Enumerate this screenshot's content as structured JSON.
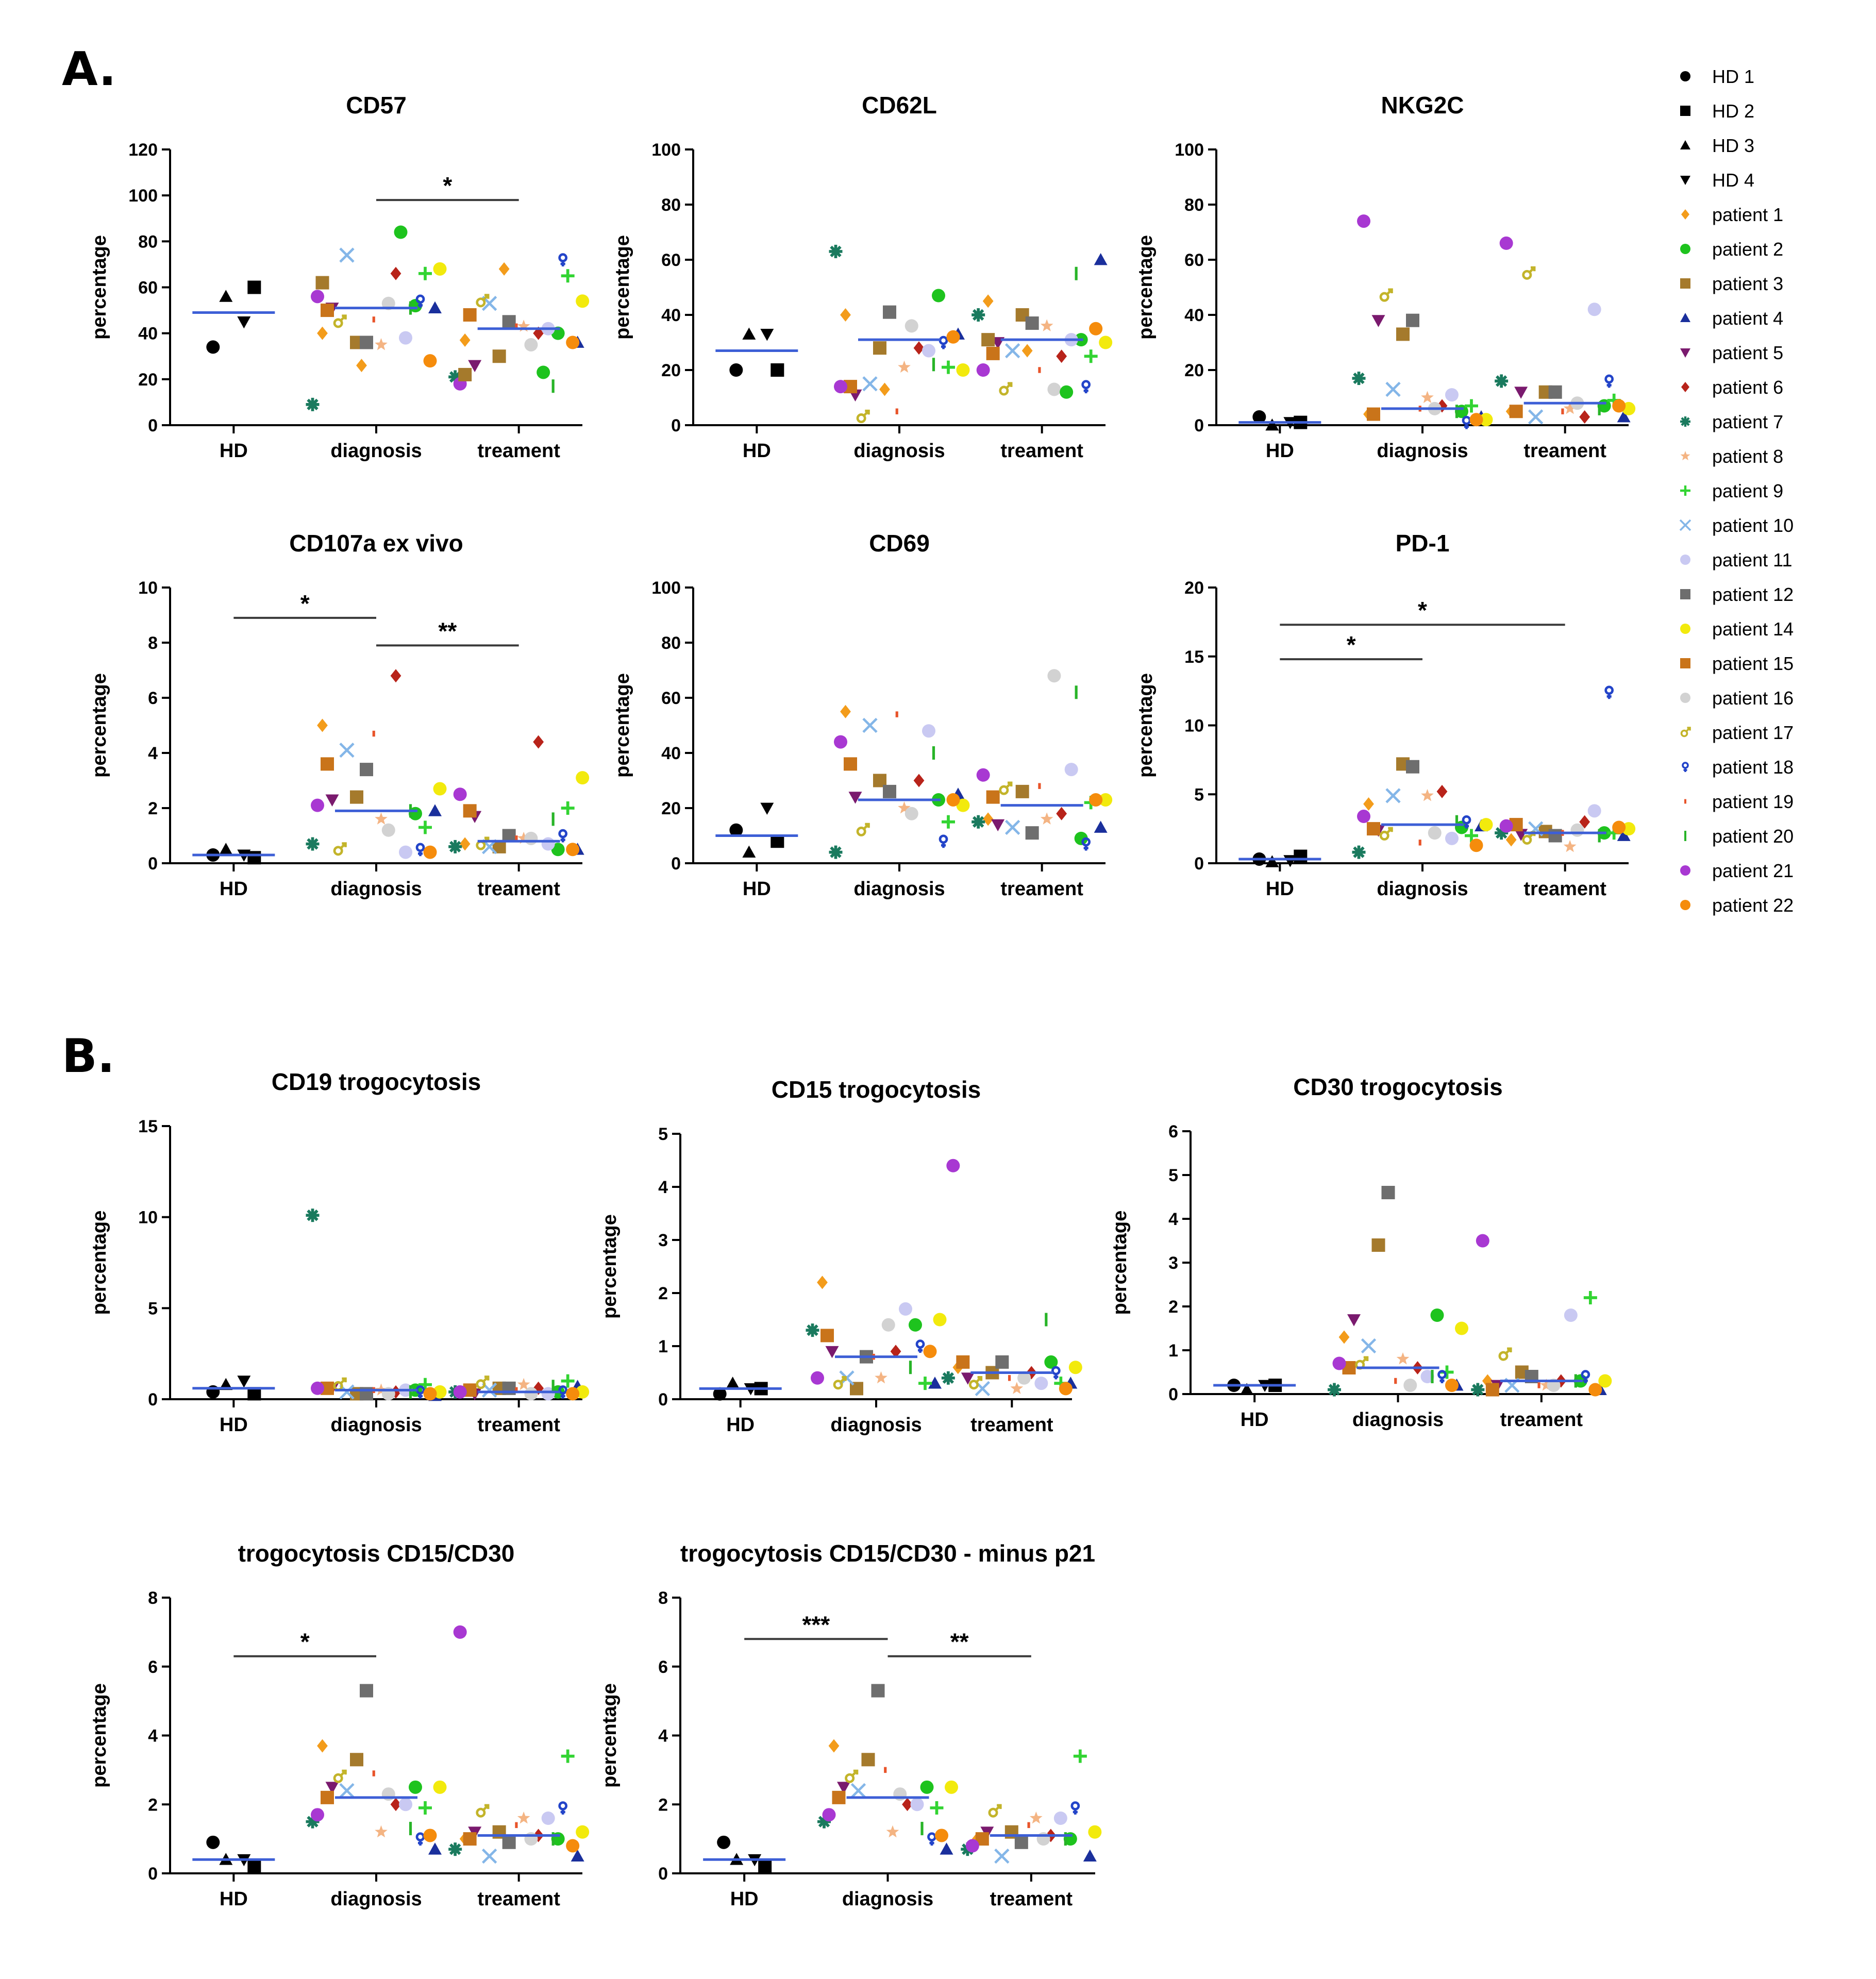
{
  "panels": [
    {
      "label": "A."
    },
    {
      "label": "B."
    }
  ],
  "legend": {
    "items": [
      {
        "name": "HD 1",
        "color": "#000000",
        "shape": "circle"
      },
      {
        "name": "HD 2",
        "color": "#000000",
        "shape": "square"
      },
      {
        "name": "HD 3",
        "color": "#000000",
        "shape": "triangle"
      },
      {
        "name": "HD 4",
        "color": "#000000",
        "shape": "triangle-down"
      },
      {
        "name": "patient 1",
        "color": "#f39c1b",
        "shape": "diamond"
      },
      {
        "name": "patient 2",
        "color": "#1ec31e",
        "shape": "circle"
      },
      {
        "name": "patient 3",
        "color": "#a57a2c",
        "shape": "square"
      },
      {
        "name": "patient 4",
        "color": "#1a2f9c",
        "shape": "triangle"
      },
      {
        "name": "patient 5",
        "color": "#7a1a6e",
        "shape": "triangle-down"
      },
      {
        "name": "patient 6",
        "color": "#b8231a",
        "shape": "diamond"
      },
      {
        "name": "patient 7",
        "color": "#1a7a5e",
        "shape": "asterisk"
      },
      {
        "name": "patient 8",
        "color": "#f4b483",
        "shape": "star"
      },
      {
        "name": "patient 9",
        "color": "#32d432",
        "shape": "plus"
      },
      {
        "name": "patient 10",
        "color": "#84b6e8",
        "shape": "x"
      },
      {
        "name": "patient 11",
        "color": "#c9c9f2",
        "shape": "circle"
      },
      {
        "name": "patient 12",
        "color": "#6e6e6e",
        "shape": "square"
      },
      {
        "name": "patient 14",
        "color": "#f2ea0d",
        "shape": "circle"
      },
      {
        "name": "patient 15",
        "color": "#c9741a",
        "shape": "square"
      },
      {
        "name": "patient 16",
        "color": "#d2d2d2",
        "shape": "circle"
      },
      {
        "name": "patient 17",
        "color": "#c3b42a",
        "shape": "male"
      },
      {
        "name": "patient 18",
        "color": "#2344c9",
        "shape": "female"
      },
      {
        "name": "patient 19",
        "color": "#e8542a",
        "shape": "dash"
      },
      {
        "name": "patient 20",
        "color": "#28b428",
        "shape": "vbar"
      },
      {
        "name": "patient 21",
        "color": "#a838d2",
        "shape": "circle"
      },
      {
        "name": "patient 22",
        "color": "#f58c0c",
        "shape": "circle"
      }
    ]
  },
  "chart_data": [
    {
      "type": "scatter",
      "title": "CD57",
      "ylabel": "percentage",
      "ylim": [
        0,
        120
      ],
      "yticks": [
        "0",
        "20",
        "40",
        "60",
        "80",
        "100",
        "120"
      ],
      "tick_values": [
        0,
        20,
        40,
        60,
        80,
        100,
        120
      ],
      "categories": [
        "HD",
        "diagnosis",
        "treament"
      ],
      "means": [
        49,
        51,
        42
      ],
      "significance": [
        {
          "from": 1,
          "to": 2,
          "label": "*",
          "y": 98
        }
      ],
      "points": [
        [
          34,
          60,
          56,
          45
        ],
        [
          40,
          52,
          36,
          51,
          51,
          66,
          9,
          35,
          66,
          74,
          38,
          36,
          68,
          50,
          53,
          45,
          54,
          46,
          51,
          56,
          28,
          26,
          84,
          62
        ],
        [
          37,
          40,
          30,
          36,
          26,
          40,
          21,
          43,
          65,
          53,
          42,
          45,
          54,
          48,
          35,
          54,
          72,
          43,
          17,
          18,
          36,
          68,
          23,
          22
        ]
      ]
    },
    {
      "type": "scatter",
      "title": "CD62L",
      "ylabel": "percentage",
      "ylim": [
        0,
        100
      ],
      "yticks": [
        "0",
        "20",
        "40",
        "60",
        "80",
        "100"
      ],
      "tick_values": [
        0,
        20,
        40,
        60,
        80,
        100
      ],
      "categories": [
        "HD",
        "diagnosis",
        "treament"
      ],
      "means": [
        27,
        31,
        31
      ],
      "significance": [],
      "points": [
        [
          20,
          20,
          33,
          33
        ],
        [
          40,
          47,
          28,
          33,
          11,
          28,
          63,
          21,
          21,
          15,
          27,
          41,
          20,
          14,
          36,
          3,
          30,
          5,
          22,
          14,
          32,
          13
        ],
        [
          45,
          31,
          40,
          60,
          30,
          25,
          40,
          36,
          25,
          27,
          31,
          37,
          30,
          26,
          13,
          13,
          14,
          20,
          55,
          20,
          35,
          27,
          12,
          31
        ]
      ]
    },
    {
      "type": "scatter",
      "title": "NKG2C",
      "ylabel": "percentage",
      "ylim": [
        0,
        100
      ],
      "yticks": [
        "0",
        "20",
        "40",
        "60",
        "80",
        "100"
      ],
      "tick_values": [
        0,
        20,
        40,
        60,
        80,
        100
      ],
      "categories": [
        "HD",
        "diagnosis",
        "treament"
      ],
      "means": [
        1,
        6,
        8
      ],
      "significance": [],
      "points": [
        [
          3,
          1,
          0,
          1
        ],
        [
          4,
          5,
          33,
          3,
          38,
          7,
          17,
          10,
          7,
          13,
          11,
          38,
          2,
          4,
          6,
          47,
          1,
          6,
          5,
          74,
          2
        ],
        [
          5,
          7,
          12,
          3,
          12,
          3,
          16,
          6,
          9,
          3,
          42,
          12,
          6,
          5,
          8,
          55,
          16,
          5,
          6,
          66,
          7
        ]
      ]
    },
    {
      "type": "scatter",
      "title": "CD107a ex vivo",
      "ylabel": "percentage",
      "ylim": [
        0,
        10
      ],
      "yticks": [
        "0",
        "2",
        "4",
        "6",
        "8",
        "10"
      ],
      "tick_values": [
        0,
        2,
        4,
        6,
        8,
        10
      ],
      "categories": [
        "HD",
        "diagnosis",
        "treament"
      ],
      "means": [
        0.3,
        1.9,
        0.8
      ],
      "significance": [
        {
          "from": 0,
          "to": 1,
          "label": "*",
          "y": 8.9
        },
        {
          "from": 1,
          "to": 2,
          "label": "**",
          "y": 7.9
        }
      ],
      "points": [
        [
          0.3,
          0.2,
          0.5,
          0.3
        ],
        [
          5.0,
          1.8,
          2.4,
          1.9,
          2.3,
          6.8,
          0.7,
          1.6,
          1.3,
          4.1,
          0.4,
          3.4,
          2.7,
          3.6,
          1.2,
          0.5,
          0.5,
          4.7,
          1.9,
          2.1,
          0.4
        ],
        [
          0.7,
          0.5,
          0.6,
          0.5,
          1.7,
          4.4,
          0.6,
          0.9,
          2.0,
          0.6,
          0.7,
          1.0,
          3.1,
          1.9,
          0.9,
          0.7,
          1.0,
          0.9,
          1.6,
          2.5,
          0.5
        ]
      ]
    },
    {
      "type": "scatter",
      "title": "CD69",
      "ylabel": "percentage",
      "ylim": [
        0,
        100
      ],
      "yticks": [
        "0",
        "20",
        "40",
        "60",
        "80",
        "100"
      ],
      "tick_values": [
        0,
        20,
        40,
        60,
        80,
        100
      ],
      "categories": [
        "HD",
        "diagnosis",
        "treament"
      ],
      "means": [
        10,
        23,
        21
      ],
      "significance": [],
      "points": [
        [
          12,
          8,
          4,
          20
        ],
        [
          55,
          23,
          30,
          25,
          24,
          30,
          4,
          20,
          15,
          50,
          48,
          26,
          21,
          36,
          18,
          12,
          8,
          54,
          40,
          44,
          23
        ],
        [
          16,
          9,
          26,
          13,
          14,
          18,
          15,
          16,
          22,
          13,
          34,
          11,
          23,
          24,
          68,
          27,
          7,
          28,
          62,
          32,
          23
        ]
      ]
    },
    {
      "type": "scatter",
      "title": "PD-1",
      "ylabel": "percentage",
      "ylim": [
        0,
        20
      ],
      "yticks": [
        "0",
        "5",
        "10",
        "15",
        "20"
      ],
      "tick_values": [
        0,
        5,
        10,
        15,
        20
      ],
      "categories": [
        "HD",
        "diagnosis",
        "treament"
      ],
      "means": [
        0.3,
        2.8,
        2.2
      ],
      "significance": [
        {
          "from": 0,
          "to": 1,
          "label": "*",
          "y": 14.8
        },
        {
          "from": 0,
          "to": 2,
          "label": "*",
          "y": 17.3
        }
      ],
      "points": [
        [
          0.3,
          0.5,
          0.1,
          0.2
        ],
        [
          4.3,
          2.6,
          7.2,
          2.7,
          2.4,
          5.2,
          0.8,
          4.9,
          2.0,
          4.9,
          1.8,
          7.0,
          2.8,
          2.5,
          2.2,
          2.1,
          3.0,
          1.5,
          3.0,
          3.4,
          1.3
        ],
        [
          1.7,
          2.2,
          2.3,
          2.0,
          2.1,
          3.0,
          2.2,
          1.2,
          2.2,
          2.5,
          3.8,
          2.0,
          2.5,
          2.8,
          2.4,
          1.8,
          12.4,
          2.2,
          2.0,
          2.7,
          2.6
        ]
      ]
    },
    {
      "type": "scatter",
      "title": "CD19 trogocytosis",
      "ylabel": "percentage",
      "ylim": [
        0,
        15
      ],
      "yticks": [
        "0",
        "5",
        "10",
        "15"
      ],
      "tick_values": [
        0,
        5,
        10,
        15
      ],
      "categories": [
        "HD",
        "diagnosis",
        "treament"
      ],
      "means": [
        0.6,
        0.5,
        0.4
      ],
      "significance": [],
      "points": [
        [
          0.4,
          0.3,
          0.8,
          1.0
        ],
        [
          0.6,
          0.5,
          0.3,
          0.2,
          0.6,
          0.4,
          10.1,
          0.5,
          0.8,
          0.4,
          0.5,
          0.3,
          0.4,
          0.6,
          0.3,
          0.8,
          0.4,
          0.5,
          0.4,
          0.6,
          0.3
        ],
        [
          0.5,
          0.4,
          0.6,
          0.7,
          0.3,
          0.6,
          0.4,
          0.8,
          1.0,
          0.5,
          0.3,
          0.6,
          0.4,
          0.5,
          0.3,
          0.9,
          0.4,
          0.5,
          0.7,
          0.4,
          0.3
        ]
      ]
    },
    {
      "type": "scatter",
      "title": "CD15 trogocytosis",
      "ylabel": "percentage",
      "ylim": [
        0,
        5
      ],
      "yticks": [
        "0",
        "1",
        "2",
        "3",
        "4",
        "5"
      ],
      "tick_values": [
        0,
        1,
        2,
        3,
        4,
        5
      ],
      "categories": [
        "HD",
        "diagnosis",
        "treament"
      ],
      "means": [
        0.2,
        0.8,
        0.5
      ],
      "significance": [],
      "points": [
        [
          0.1,
          0.2,
          0.3,
          0.2
        ],
        [
          2.2,
          1.4,
          0.2,
          0.3,
          0.9,
          0.9,
          1.3,
          0.4,
          0.3,
          0.4,
          1.7,
          0.8,
          1.5,
          1.2,
          1.4,
          0.3,
          1.0,
          0.8,
          0.6,
          0.4,
          0.9
        ],
        [
          0.6,
          0.7,
          0.5,
          0.3,
          0.4,
          0.5,
          0.4,
          0.2,
          0.3,
          0.2,
          0.3,
          0.7,
          0.6,
          0.7,
          0.4,
          0.3,
          0.5,
          0.4,
          1.5,
          4.4,
          0.2
        ]
      ]
    },
    {
      "type": "scatter",
      "title": "CD30 trogocytosis",
      "ylabel": "percentage",
      "ylim": [
        0,
        6
      ],
      "yticks": [
        "0",
        "1",
        "2",
        "3",
        "4",
        "5",
        "6"
      ],
      "tick_values": [
        0,
        1,
        2,
        3,
        4,
        5,
        6
      ],
      "categories": [
        "HD",
        "diagnosis",
        "treament"
      ],
      "means": [
        0.2,
        0.6,
        0.3
      ],
      "significance": [],
      "points": [
        [
          0.2,
          0.2,
          0.1,
          0.2
        ],
        [
          1.3,
          1.8,
          3.4,
          0.2,
          1.7,
          0.6,
          0.1,
          0.8,
          0.5,
          1.1,
          0.4,
          4.6,
          1.5,
          0.6,
          0.2,
          0.7,
          0.4,
          0.3,
          0.4,
          0.7,
          0.2
        ],
        [
          0.3,
          0.3,
          0.5,
          0.1,
          0.2,
          0.3,
          0.1,
          0.2,
          2.2,
          0.2,
          1.8,
          0.4,
          0.3,
          0.1,
          0.2,
          0.9,
          0.4,
          0.2,
          0.3,
          3.5,
          0.1
        ]
      ]
    },
    {
      "type": "scatter",
      "title": "trogocytosis CD15/CD30",
      "ylabel": "percentage",
      "ylim": [
        0,
        8
      ],
      "yticks": [
        "0",
        "2",
        "4",
        "6",
        "8"
      ],
      "tick_values": [
        0,
        2,
        4,
        6,
        8
      ],
      "categories": [
        "HD",
        "diagnosis",
        "treament"
      ],
      "means": [
        0.4,
        2.2,
        1.1
      ],
      "significance": [
        {
          "from": 0,
          "to": 1,
          "label": "*",
          "y": 6.3
        }
      ],
      "points": [
        [
          0.9,
          0.2,
          0.4,
          0.4
        ],
        [
          3.7,
          2.5,
          3.3,
          0.7,
          2.5,
          2.0,
          1.5,
          1.2,
          1.9,
          2.4,
          2.0,
          5.3,
          2.5,
          2.2,
          2.3,
          2.8,
          1.0,
          2.9,
          1.3,
          1.7,
          1.1
        ],
        [
          1.0,
          1.0,
          1.2,
          0.5,
          1.2,
          1.1,
          0.7,
          1.6,
          3.4,
          0.5,
          1.6,
          0.9,
          1.2,
          1.0,
          1.0,
          1.8,
          1.9,
          1.4,
          1.0,
          7.0,
          0.8
        ]
      ]
    },
    {
      "type": "scatter",
      "title": "trogocytosis CD15/CD30 - minus p21",
      "ylabel": "percentage",
      "ylim": [
        0,
        8
      ],
      "yticks": [
        "0",
        "2",
        "4",
        "6",
        "8"
      ],
      "tick_values": [
        0,
        2,
        4,
        6,
        8
      ],
      "categories": [
        "HD",
        "diagnosis",
        "treament"
      ],
      "means": [
        0.4,
        2.2,
        1.1
      ],
      "significance": [
        {
          "from": 0,
          "to": 1,
          "label": "***",
          "y": 6.8
        },
        {
          "from": 1,
          "to": 2,
          "label": "**",
          "y": 6.3
        }
      ],
      "points": [
        [
          0.9,
          0.2,
          0.4,
          0.4
        ],
        [
          3.7,
          2.5,
          3.3,
          0.7,
          2.5,
          2.0,
          1.5,
          1.2,
          1.9,
          2.4,
          2.0,
          5.3,
          2.5,
          2.2,
          2.3,
          2.8,
          1.0,
          3.0,
          1.3,
          1.7,
          1.1
        ],
        [
          1.0,
          1.0,
          1.2,
          0.5,
          1.2,
          1.1,
          0.7,
          1.6,
          3.4,
          0.5,
          1.6,
          0.9,
          1.2,
          1.0,
          1.0,
          1.8,
          1.9,
          1.4,
          1.0,
          0.8
        ]
      ]
    }
  ]
}
